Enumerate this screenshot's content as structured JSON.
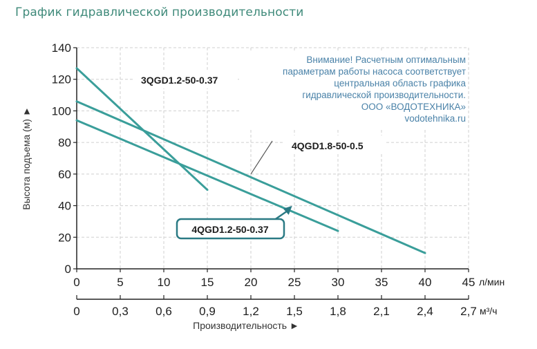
{
  "page_title": "График гидравлической производительности",
  "colors": {
    "title": "#3f8a7a",
    "series": "#3a9e9a",
    "axis": "#222222",
    "grid": "#cfcfcf",
    "note": "#4a82a8",
    "highlight_border": "#2a7a84"
  },
  "chart_data": {
    "type": "line",
    "title": "",
    "ylabel": "Высота подъема (м) ►",
    "xlabel": "Производительность ►",
    "x_unit": "л/мин",
    "x2_unit": "м³/ч",
    "xlim": [
      0,
      45
    ],
    "ylim": [
      0,
      140
    ],
    "grid": true,
    "x_ticks": [
      "0",
      "5",
      "10",
      "15",
      "20",
      "25",
      "30",
      "35",
      "40",
      "45"
    ],
    "x2_ticks": [
      "0",
      "0,3",
      "0,6",
      "0,9",
      "1,2",
      "1,5",
      "1,8",
      "2,1",
      "2,4",
      "2,7"
    ],
    "y_ticks": [
      "0",
      "20",
      "40",
      "60",
      "80",
      "100",
      "120",
      "140"
    ],
    "series": [
      {
        "name": "3QGD1.2-50-0.37",
        "x": [
          0,
          15
        ],
        "y": [
          127,
          50
        ]
      },
      {
        "name": "4QGD1.8-50-0.5",
        "x": [
          0,
          40
        ],
        "y": [
          106,
          10
        ]
      },
      {
        "name": "4QGD1.2-50-0.37",
        "x": [
          0,
          30
        ],
        "y": [
          94,
          24
        ]
      }
    ],
    "annotations": {
      "note_lines": [
        "Внимание! Расчетным оптимальным",
        "параметрам работы насоса соответствует",
        "центральная область графика",
        "гидравлической производительности.",
        "ООО «ВОДОТЕХНИКА»",
        "vodotehnika.ru"
      ]
    }
  }
}
